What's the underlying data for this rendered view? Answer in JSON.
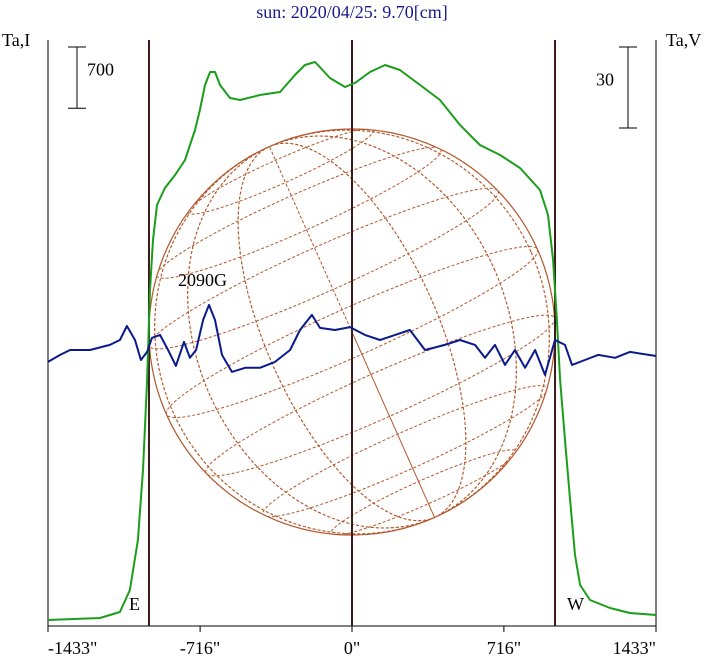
{
  "chart_data": {
    "type": "line",
    "title": "sun: 2020/04/25: 9.70[cm]",
    "y_label": "Ta,I",
    "y2_label": "Ta,V",
    "xlim": [
      -1433,
      1433
    ],
    "xticks": [
      {
        "value": -1433,
        "label": "-1433\""
      },
      {
        "value": -716,
        "label": "-716\""
      },
      {
        "value": 0,
        "label": "0\""
      },
      {
        "value": 716,
        "label": "716\""
      },
      {
        "value": 1433,
        "label": "1433\""
      }
    ],
    "ylim": [
      0,
      6700
    ],
    "y2lim": [
      -100,
      117
    ],
    "y_scale_bar": 700,
    "y2_scale_bar": 30,
    "limb_lines": [
      -957,
      0,
      957
    ],
    "limb_labels": [
      "E",
      "W"
    ],
    "annotation": "2090G",
    "series": [
      {
        "name": "Ta,I",
        "color": "#1a9e1a",
        "x": [
          -1433,
          -1188,
          -1094,
          -1047,
          -1009,
          -985,
          -966,
          -952,
          -938,
          -919,
          -882,
          -834,
          -787,
          -740,
          -717,
          -693,
          -669,
          -646,
          -622,
          -575,
          -528,
          -434,
          -339,
          -269,
          -222,
          -174,
          -104,
          -33,
          14,
          85,
          156,
          226,
          321,
          415,
          509,
          603,
          698,
          792,
          886,
          924,
          948,
          966,
          981,
          1004,
          1028,
          1051,
          1075,
          1122,
          1216,
          1310,
          1433
        ],
        "values": [
          69,
          91,
          160,
          412,
          983,
          1784,
          2813,
          3842,
          4413,
          4814,
          5008,
          5157,
          5328,
          5671,
          5900,
          6186,
          6334,
          6334,
          6186,
          6037,
          6014,
          6071,
          6106,
          6300,
          6414,
          6449,
          6266,
          6163,
          6209,
          6334,
          6414,
          6357,
          6186,
          6014,
          5728,
          5500,
          5385,
          5237,
          4985,
          4699,
          4185,
          3499,
          2813,
          2127,
          1441,
          812,
          469,
          297,
          206,
          149,
          126
        ]
      },
      {
        "name": "Ta,V",
        "color": "#0a1a8c",
        "axis": "y2",
        "x": [
          -1433,
          -1376,
          -1329,
          -1235,
          -1141,
          -1094,
          -1061,
          -1023,
          -995,
          -966,
          -943,
          -905,
          -867,
          -830,
          -792,
          -764,
          -735,
          -702,
          -674,
          -646,
          -613,
          -566,
          -504,
          -434,
          -363,
          -292,
          -245,
          -189,
          -151,
          -80,
          -9,
          61,
          132,
          203,
          273,
          344,
          438,
          509,
          580,
          627,
          674,
          721,
          768,
          816,
          863,
          910,
          957,
          1004,
          1037,
          1098,
          1160,
          1240,
          1310,
          1433
        ],
        "values": [
          -2.2,
          0.4,
          2.2,
          2.2,
          4.1,
          5.9,
          11.1,
          5.9,
          -1.5,
          1.5,
          6.7,
          7.8,
          2.2,
          -3.7,
          5.2,
          -0.7,
          2.2,
          13.3,
          18.9,
          13.3,
          0.4,
          -5.9,
          -4.4,
          -4.4,
          -2.2,
          2.2,
          9.6,
          15.2,
          10.4,
          9.6,
          10.7,
          7.8,
          5.9,
          7.8,
          9.6,
          2.2,
          4.1,
          5.9,
          4.1,
          -0.7,
          4.1,
          -3.3,
          2.2,
          -4.4,
          2.2,
          -7.0,
          5.9,
          4.1,
          -3.3,
          -1.5,
          0.4,
          -0.7,
          1.5,
          0
        ]
      }
    ]
  }
}
